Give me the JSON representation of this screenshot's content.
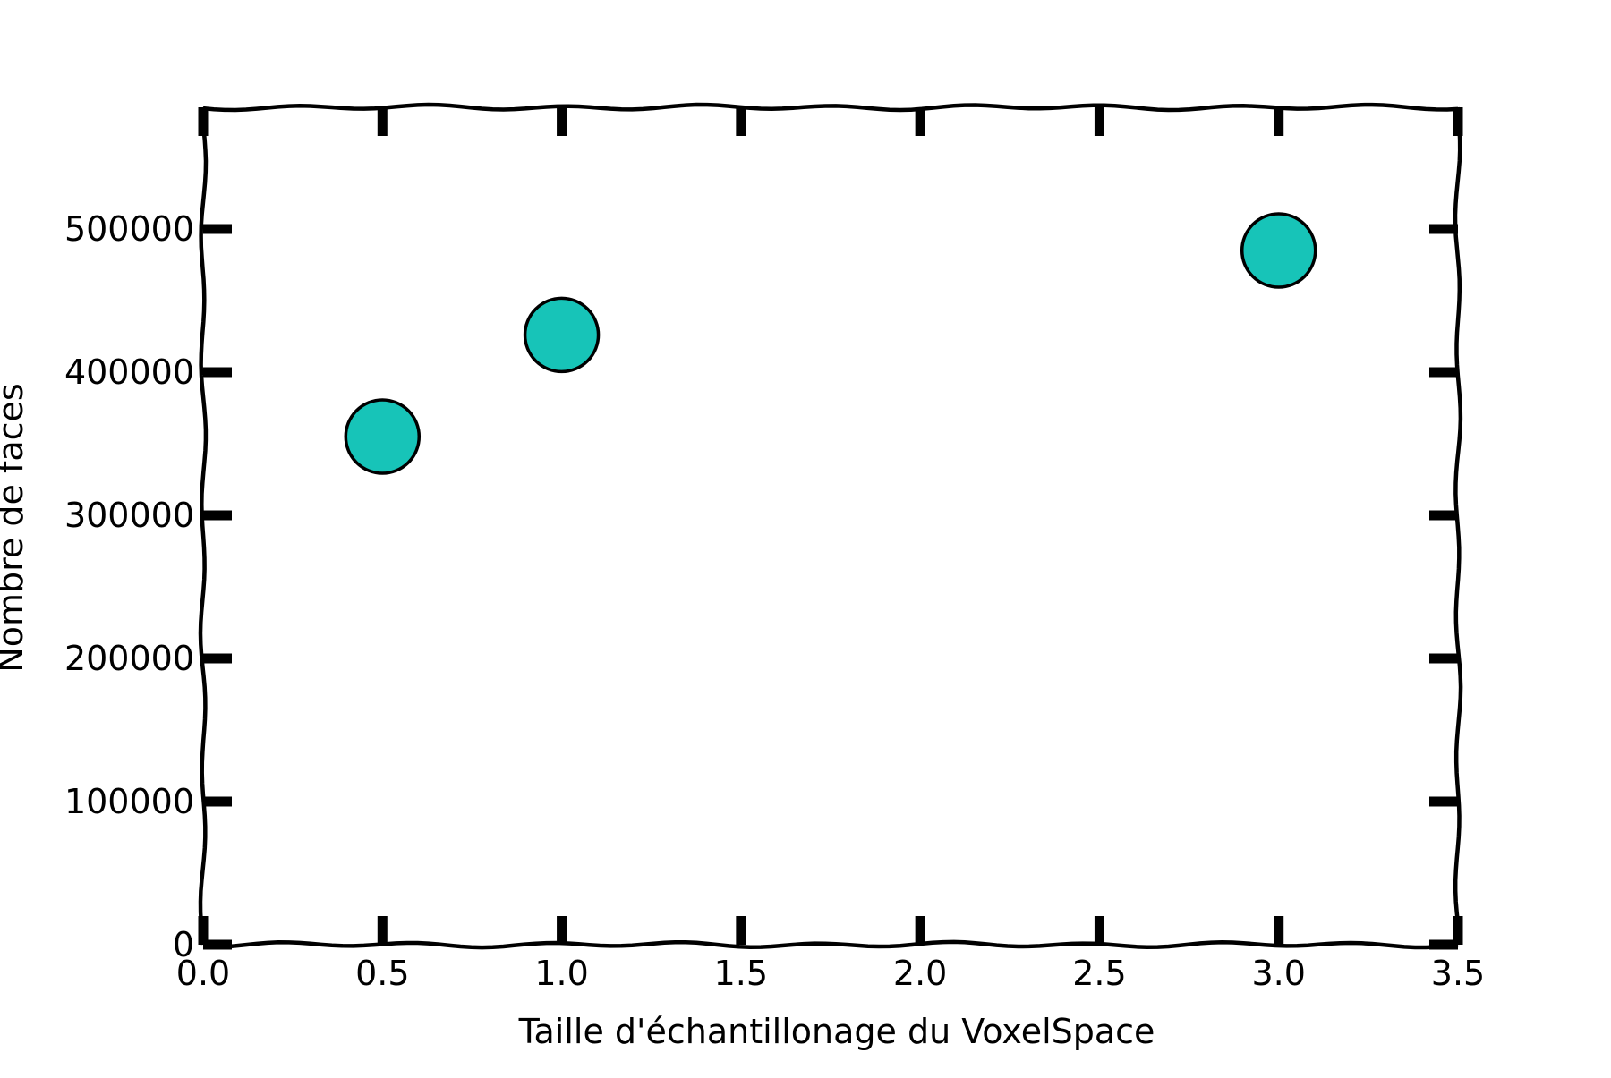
{
  "chart_data": {
    "type": "scatter",
    "title": "",
    "xlabel": "Taille d'échantillonage du VoxelSpace",
    "ylabel": "Nombre de faces",
    "xlim": [
      0.0,
      3.5
    ],
    "ylim": [
      0,
      585000
    ],
    "xticks": [
      0.0,
      0.5,
      1.0,
      1.5,
      2.0,
      2.5,
      3.0,
      3.5
    ],
    "xtick_labels": [
      "0.0",
      "0.5",
      "1.0",
      "1.5",
      "2.0",
      "2.5",
      "3.0",
      "3.5"
    ],
    "yticks": [
      0,
      100000,
      200000,
      300000,
      400000,
      500000
    ],
    "ytick_labels": [
      "0",
      "100000",
      "200000",
      "300000",
      "400000",
      "500000"
    ],
    "grid": false,
    "style": "xkcd",
    "series": [
      {
        "color": "#17c4b8",
        "points": [
          {
            "x": 0.5,
            "y": 355000
          },
          {
            "x": 1.0,
            "y": 426000
          },
          {
            "x": 3.0,
            "y": 485000
          }
        ]
      }
    ]
  }
}
